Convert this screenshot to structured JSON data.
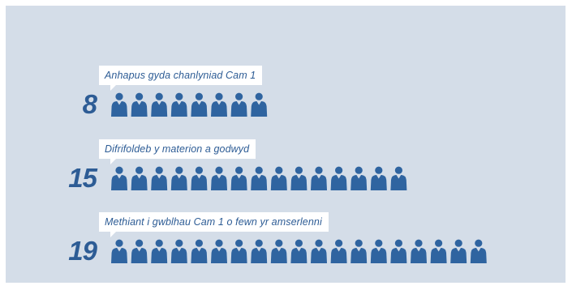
{
  "chart_data": {
    "type": "pictogram",
    "unit_icon": "person-icon",
    "icon_color": "#2f64a0",
    "background_color": "#d4dde8",
    "rows": [
      {
        "label": "Anhapus gyda chanlyniad Cam 1",
        "value": 8
      },
      {
        "label": "Difrifoldeb y materion a godwyd",
        "value": 15
      },
      {
        "label": "Methiant i gwblhau Cam 1 o fewn yr amserlenni",
        "value": 19
      }
    ]
  }
}
